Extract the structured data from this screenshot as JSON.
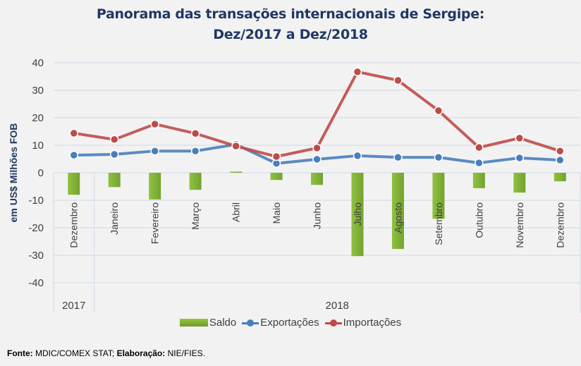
{
  "chart_data": {
    "type": "bar+line",
    "title_line1": "Panorama das transações internacionais de Sergipe:",
    "title_line2": "Dez/2017 a Dez/2018",
    "ylabel": "em US$ Milhões FOB",
    "ylim": [
      -40,
      40
    ],
    "yticks": [
      "40",
      "30",
      "20",
      "10",
      "0",
      "-10",
      "-20",
      "-30",
      "-40"
    ],
    "ytick_values": [
      40,
      30,
      20,
      10,
      0,
      -10,
      -20,
      -30,
      -40
    ],
    "grid": true,
    "categories": [
      "Dezembro",
      "Janeiro",
      "Fevereiro",
      "Março",
      "Abril",
      "Maio",
      "Junho",
      "Julho",
      "Agosto",
      "Setembro",
      "Outubro",
      "Novembro",
      "Dezembro"
    ],
    "year_groups": [
      {
        "label": "2017",
        "count": 1
      },
      {
        "label": "2018",
        "count": 12
      }
    ],
    "series": [
      {
        "name": "Saldo",
        "kind": "bar",
        "color": "#7fae34",
        "values": [
          -8.0,
          -5.2,
          -9.7,
          -6.2,
          0.4,
          -2.6,
          -4.4,
          -30.3,
          -27.7,
          -16.7,
          -5.6,
          -7.2,
          -3.1
        ]
      },
      {
        "name": "Exportações",
        "kind": "line",
        "color": "#4a7ebb",
        "values": [
          6.4,
          6.7,
          7.9,
          7.9,
          10.3,
          3.4,
          4.9,
          6.2,
          5.6,
          5.6,
          3.6,
          5.4,
          4.6
        ]
      },
      {
        "name": "Importações",
        "kind": "line",
        "color": "#be4b48",
        "values": [
          14.4,
          12.1,
          17.7,
          14.3,
          9.7,
          5.9,
          9.0,
          36.7,
          33.6,
          22.6,
          9.2,
          12.6,
          7.9
        ]
      }
    ],
    "legend_position": "bottom"
  },
  "footer": {
    "fonte_label": "Fonte:",
    "fonte_value": " MDIC/COMEX STAT; ",
    "elaboracao_label": "Elaboração:",
    "elaboracao_value": " NIE/FIES."
  }
}
